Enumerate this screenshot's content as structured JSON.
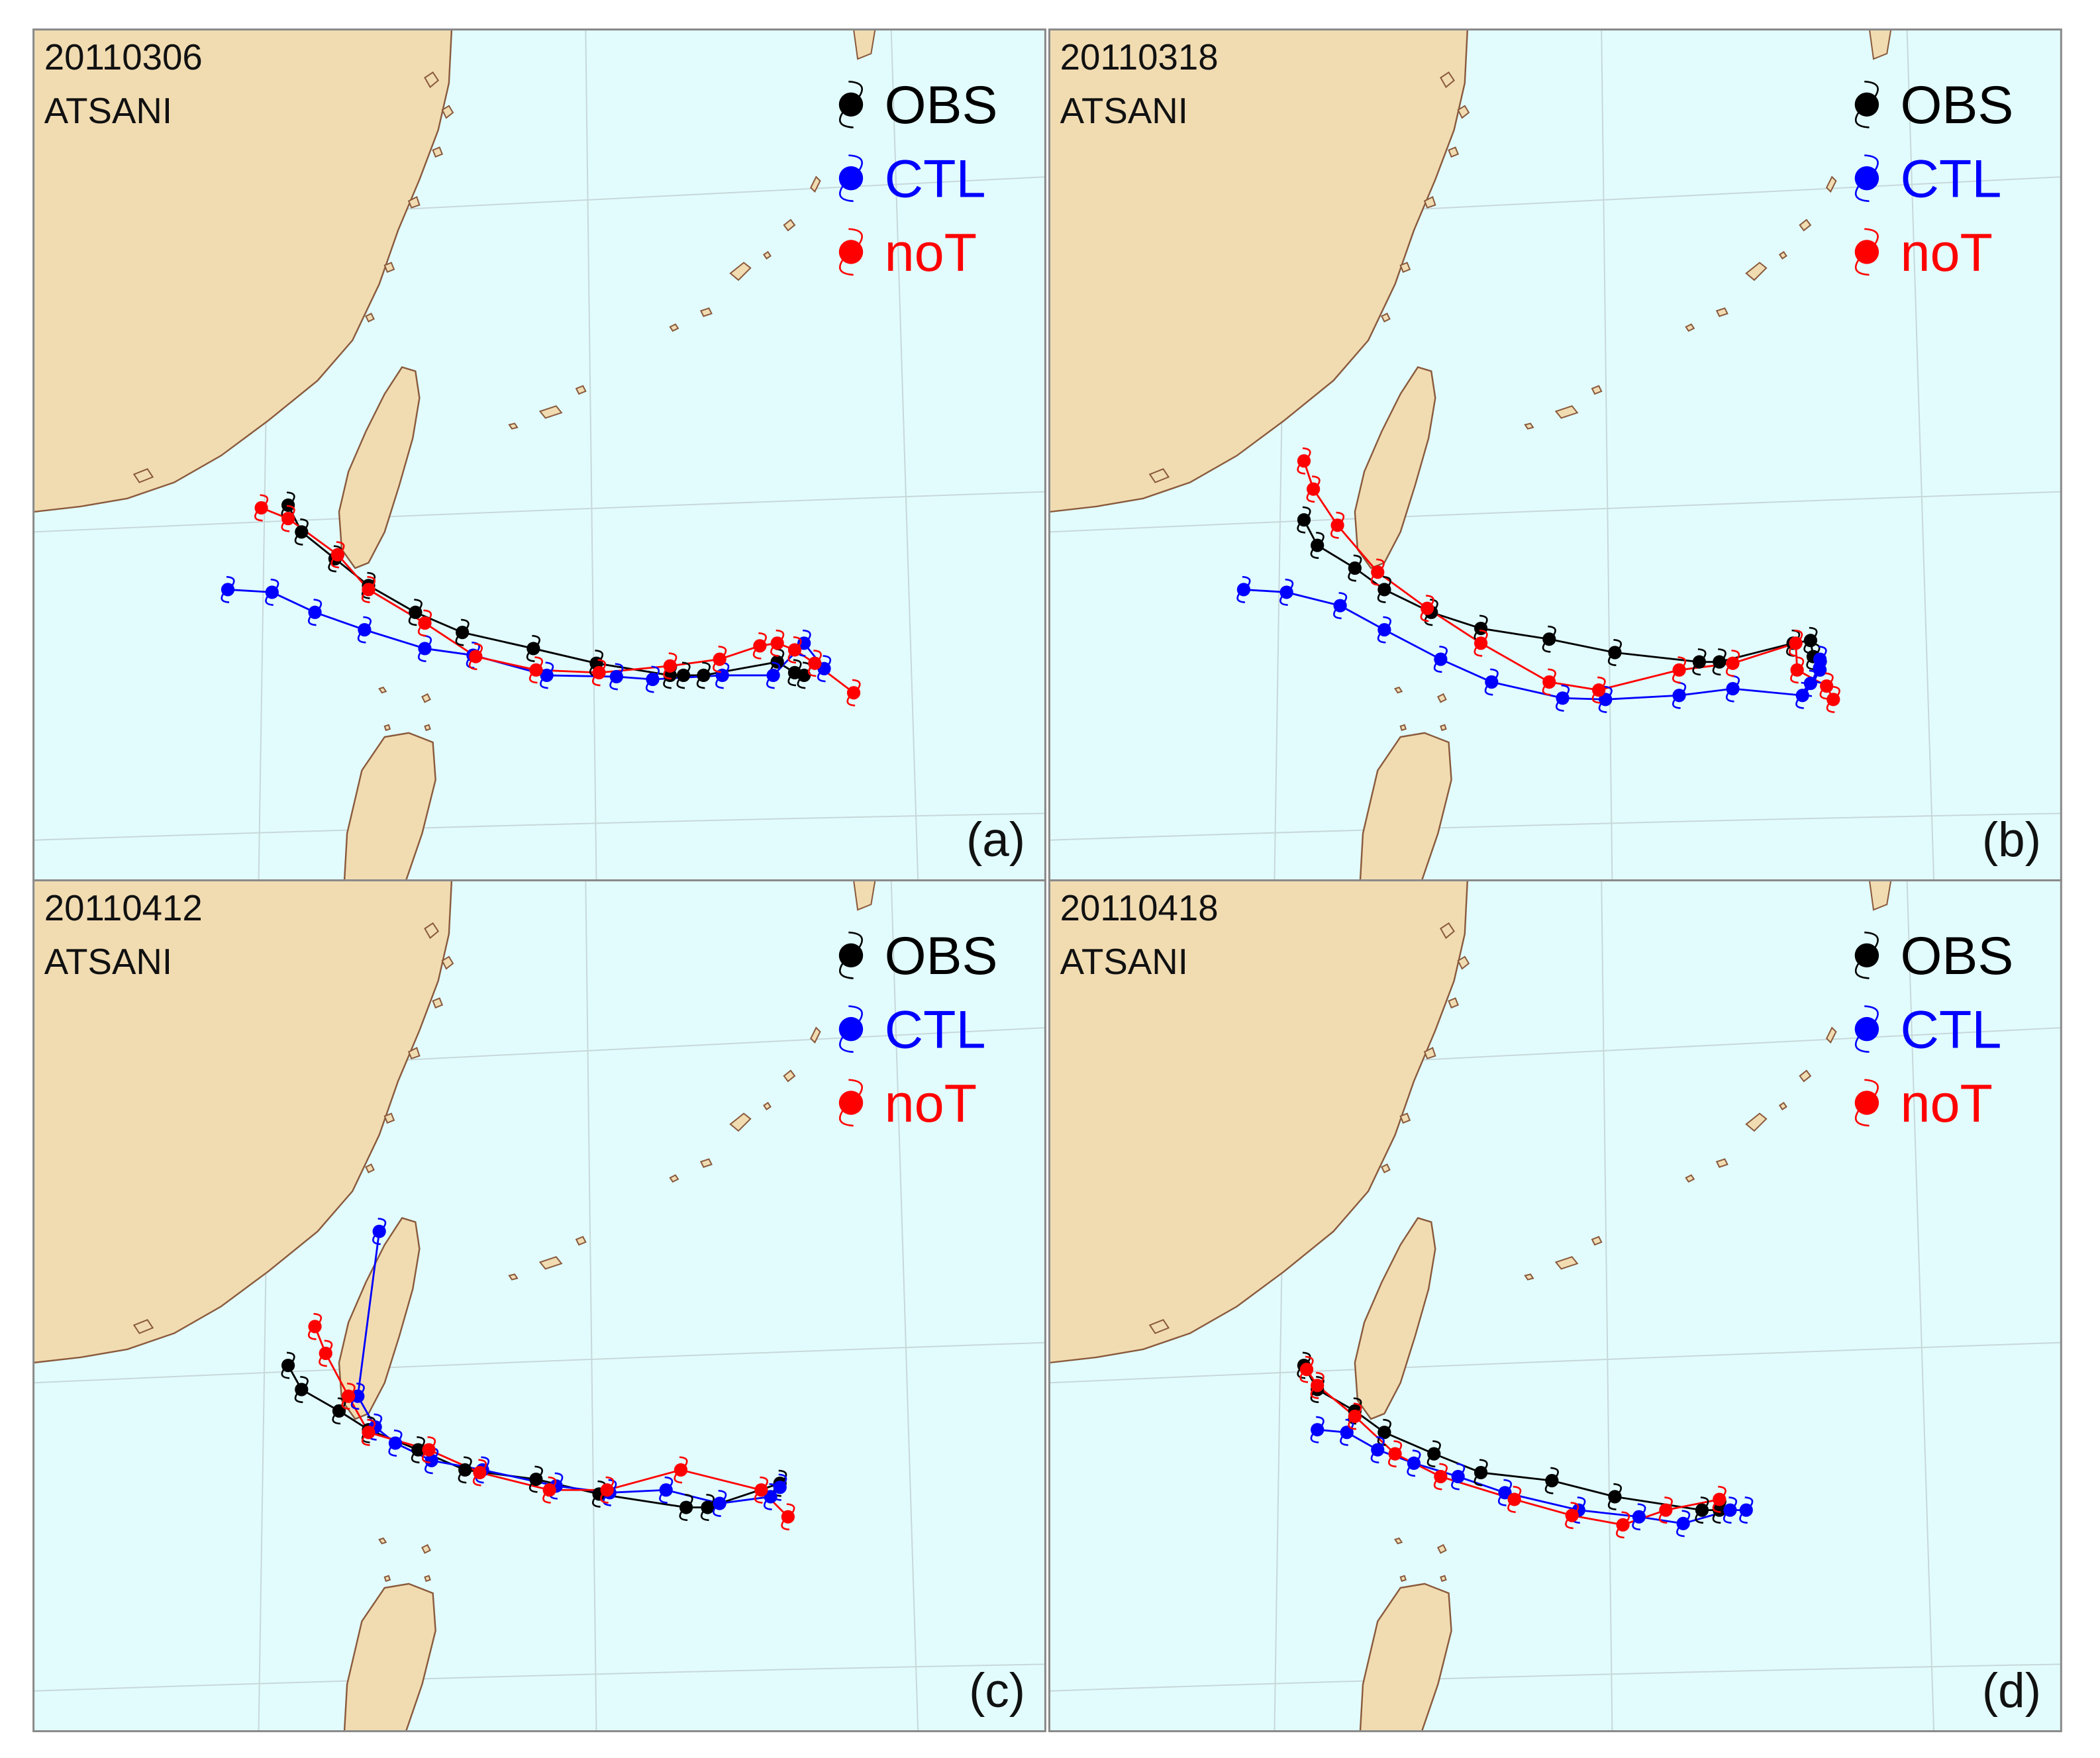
{
  "legend": {
    "obs": {
      "label": "OBS",
      "color": "#000000"
    },
    "ctl": {
      "label": "CTL",
      "color": "#0000ff"
    },
    "not": {
      "label": "noT",
      "color": "#ff0000"
    }
  },
  "colors": {
    "sea": "#e2fcfd",
    "land": "#f1dcb2",
    "coast": "#8a5a3c",
    "grid": "#c8d8da",
    "frame": "#8a8a8a"
  },
  "panels": [
    {
      "date": "20110306",
      "storm": "ATSANI",
      "tag": "(a)",
      "tracks": {
        "obs": [
          [
            190,
            355
          ],
          [
            200,
            375
          ],
          [
            225,
            395
          ],
          [
            250,
            415
          ],
          [
            285,
            435
          ],
          [
            320,
            450
          ],
          [
            373,
            462
          ],
          [
            420,
            473
          ],
          [
            475,
            482
          ],
          [
            485,
            482
          ],
          [
            500,
            482
          ],
          [
            555,
            472
          ],
          [
            568,
            480
          ],
          [
            575,
            482
          ]
        ],
        "ctl": [
          [
            145,
            418
          ],
          [
            178,
            420
          ],
          [
            210,
            435
          ],
          [
            247,
            448
          ],
          [
            292,
            462
          ],
          [
            328,
            467
          ],
          [
            383,
            482
          ],
          [
            435,
            483
          ],
          [
            462,
            485
          ],
          [
            514,
            482
          ],
          [
            552,
            482
          ],
          [
            575,
            458
          ],
          [
            590,
            477
          ]
        ],
        "not": [
          [
            170,
            357
          ],
          [
            190,
            365
          ],
          [
            227,
            392
          ],
          [
            250,
            418
          ],
          [
            292,
            443
          ],
          [
            330,
            468
          ],
          [
            375,
            478
          ],
          [
            422,
            480
          ],
          [
            475,
            475
          ],
          [
            512,
            470
          ],
          [
            542,
            460
          ],
          [
            555,
            458
          ],
          [
            568,
            463
          ],
          [
            583,
            473
          ],
          [
            612,
            495
          ]
        ]
      }
    },
    {
      "date": "20110318",
      "storm": "ATSANI",
      "tag": "(b)",
      "tracks": {
        "obs": [
          [
            190,
            366
          ],
          [
            200,
            385
          ],
          [
            228,
            402
          ],
          [
            250,
            418
          ],
          [
            285,
            435
          ],
          [
            322,
            447
          ],
          [
            373,
            455
          ],
          [
            422,
            465
          ],
          [
            485,
            472
          ],
          [
            500,
            472
          ],
          [
            555,
            458
          ],
          [
            568,
            456
          ],
          [
            570,
            468
          ],
          [
            575,
            478
          ]
        ],
        "ctl": [
          [
            145,
            418
          ],
          [
            177,
            420
          ],
          [
            217,
            430
          ],
          [
            250,
            448
          ],
          [
            292,
            470
          ],
          [
            330,
            487
          ],
          [
            383,
            499
          ],
          [
            415,
            500
          ],
          [
            470,
            497
          ],
          [
            510,
            492
          ],
          [
            562,
            497
          ],
          [
            568,
            488
          ],
          [
            575,
            478
          ],
          [
            575,
            470
          ]
        ],
        "not": [
          [
            190,
            322
          ],
          [
            197,
            343
          ],
          [
            215,
            370
          ],
          [
            245,
            405
          ],
          [
            282,
            432
          ],
          [
            322,
            458
          ],
          [
            373,
            487
          ],
          [
            410,
            493
          ],
          [
            470,
            478
          ],
          [
            510,
            473
          ],
          [
            557,
            458
          ],
          [
            558,
            478
          ],
          [
            580,
            490
          ],
          [
            585,
            500
          ]
        ]
      }
    },
    {
      "date": "20110412",
      "storm": "ATSANI",
      "tag": "(c)",
      "tracks": {
        "obs": [
          [
            190,
            362
          ],
          [
            200,
            380
          ],
          [
            228,
            396
          ],
          [
            250,
            410
          ],
          [
            287,
            425
          ],
          [
            322,
            440
          ],
          [
            375,
            447
          ],
          [
            422,
            458
          ],
          [
            487,
            468
          ],
          [
            503,
            468
          ],
          [
            557,
            450
          ]
        ],
        "ctl": [
          [
            258,
            262
          ],
          [
            242,
            385
          ],
          [
            255,
            408
          ],
          [
            270,
            420
          ],
          [
            297,
            433
          ],
          [
            335,
            440
          ],
          [
            390,
            452
          ],
          [
            430,
            457
          ],
          [
            472,
            455
          ],
          [
            512,
            465
          ],
          [
            550,
            460
          ],
          [
            557,
            453
          ]
        ],
        "not": [
          [
            210,
            333
          ],
          [
            218,
            353
          ],
          [
            235,
            385
          ],
          [
            250,
            412
          ],
          [
            295,
            425
          ],
          [
            333,
            442
          ],
          [
            385,
            455
          ],
          [
            428,
            455
          ],
          [
            483,
            440
          ],
          [
            543,
            455
          ],
          [
            563,
            475
          ]
        ]
      }
    },
    {
      "date": "20110418",
      "storm": "ATSANI",
      "tag": "(d)",
      "tracks": {
        "obs": [
          [
            190,
            362
          ],
          [
            200,
            380
          ],
          [
            228,
            396
          ],
          [
            250,
            412
          ],
          [
            287,
            428
          ],
          [
            322,
            442
          ],
          [
            375,
            448
          ],
          [
            422,
            460
          ],
          [
            487,
            470
          ],
          [
            500,
            470
          ]
        ],
        "ctl": [
          [
            200,
            410
          ],
          [
            222,
            412
          ],
          [
            245,
            425
          ],
          [
            272,
            435
          ],
          [
            305,
            445
          ],
          [
            340,
            457
          ],
          [
            395,
            470
          ],
          [
            440,
            475
          ],
          [
            473,
            480
          ],
          [
            508,
            470
          ],
          [
            520,
            470
          ]
        ],
        "not": [
          [
            192,
            365
          ],
          [
            200,
            377
          ],
          [
            228,
            400
          ],
          [
            258,
            428
          ],
          [
            292,
            445
          ],
          [
            347,
            462
          ],
          [
            390,
            474
          ],
          [
            428,
            481
          ],
          [
            460,
            470
          ],
          [
            500,
            462
          ]
        ]
      }
    }
  ]
}
